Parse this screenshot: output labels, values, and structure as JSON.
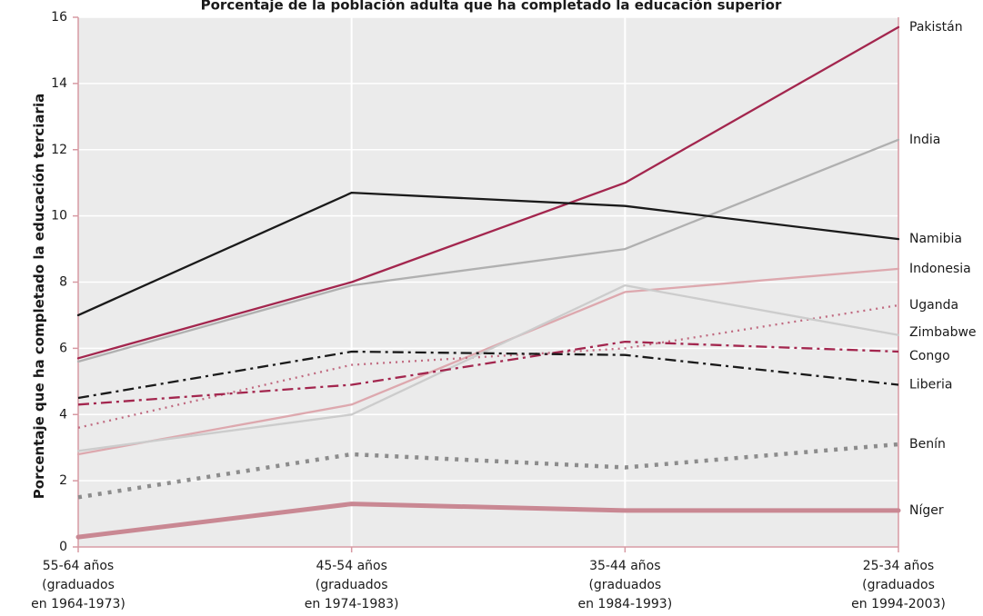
{
  "chart_data": {
    "type": "line",
    "title": "Porcentaje de la población adulta que ha completado la educación superior",
    "ylabel": "Porcentaje que ha completado la educación terciaria",
    "xlabel": "",
    "ylim": [
      0,
      16
    ],
    "yticks": [
      0,
      2,
      4,
      6,
      8,
      10,
      12,
      14,
      16
    ],
    "grid": true,
    "categories": [
      [
        "55-64 años",
        "(graduados",
        "en 1964-1973)"
      ],
      [
        "45-54 años",
        "(graduados",
        "en 1974-1983)"
      ],
      [
        "35-44 años",
        "(graduados",
        "en 1984-1993)"
      ],
      [
        "25-34 años",
        "(graduados",
        "en 1994-2003)"
      ]
    ],
    "series": [
      {
        "name": "Pakistán",
        "values": [
          5.7,
          8.0,
          11.0,
          15.7
        ],
        "color": "#a3264e",
        "style": "solid"
      },
      {
        "name": "India",
        "values": [
          5.6,
          7.9,
          9.0,
          12.3
        ],
        "color": "#b0b0b0",
        "style": "solid"
      },
      {
        "name": "Namibia",
        "values": [
          7.0,
          10.7,
          10.3,
          9.3
        ],
        "color": "#1a1a1a",
        "style": "solid"
      },
      {
        "name": "Indonesia",
        "values": [
          2.8,
          4.3,
          7.7,
          8.4
        ],
        "color": "#dda8ae",
        "style": "solid"
      },
      {
        "name": "Uganda",
        "values": [
          3.6,
          5.5,
          6.0,
          7.3
        ],
        "color": "#c06a80",
        "style": "dotted"
      },
      {
        "name": "Zimbabwe",
        "values": [
          2.9,
          4.0,
          7.9,
          6.4
        ],
        "color": "#cccccc",
        "style": "solid"
      },
      {
        "name": "Congo",
        "values": [
          4.3,
          4.9,
          6.2,
          5.9
        ],
        "color": "#a3264e",
        "style": "dashdot"
      },
      {
        "name": "Liberia",
        "values": [
          4.5,
          5.9,
          5.8,
          4.9
        ],
        "color": "#1a1a1a",
        "style": "dashdot"
      },
      {
        "name": "Benín",
        "values": [
          1.5,
          2.8,
          2.4,
          3.1
        ],
        "color": "#8c8c8c",
        "style": "thickdotted"
      },
      {
        "name": "Níger",
        "values": [
          0.3,
          1.3,
          1.1,
          1.1
        ],
        "color": "#c98893",
        "style": "thick"
      }
    ]
  }
}
